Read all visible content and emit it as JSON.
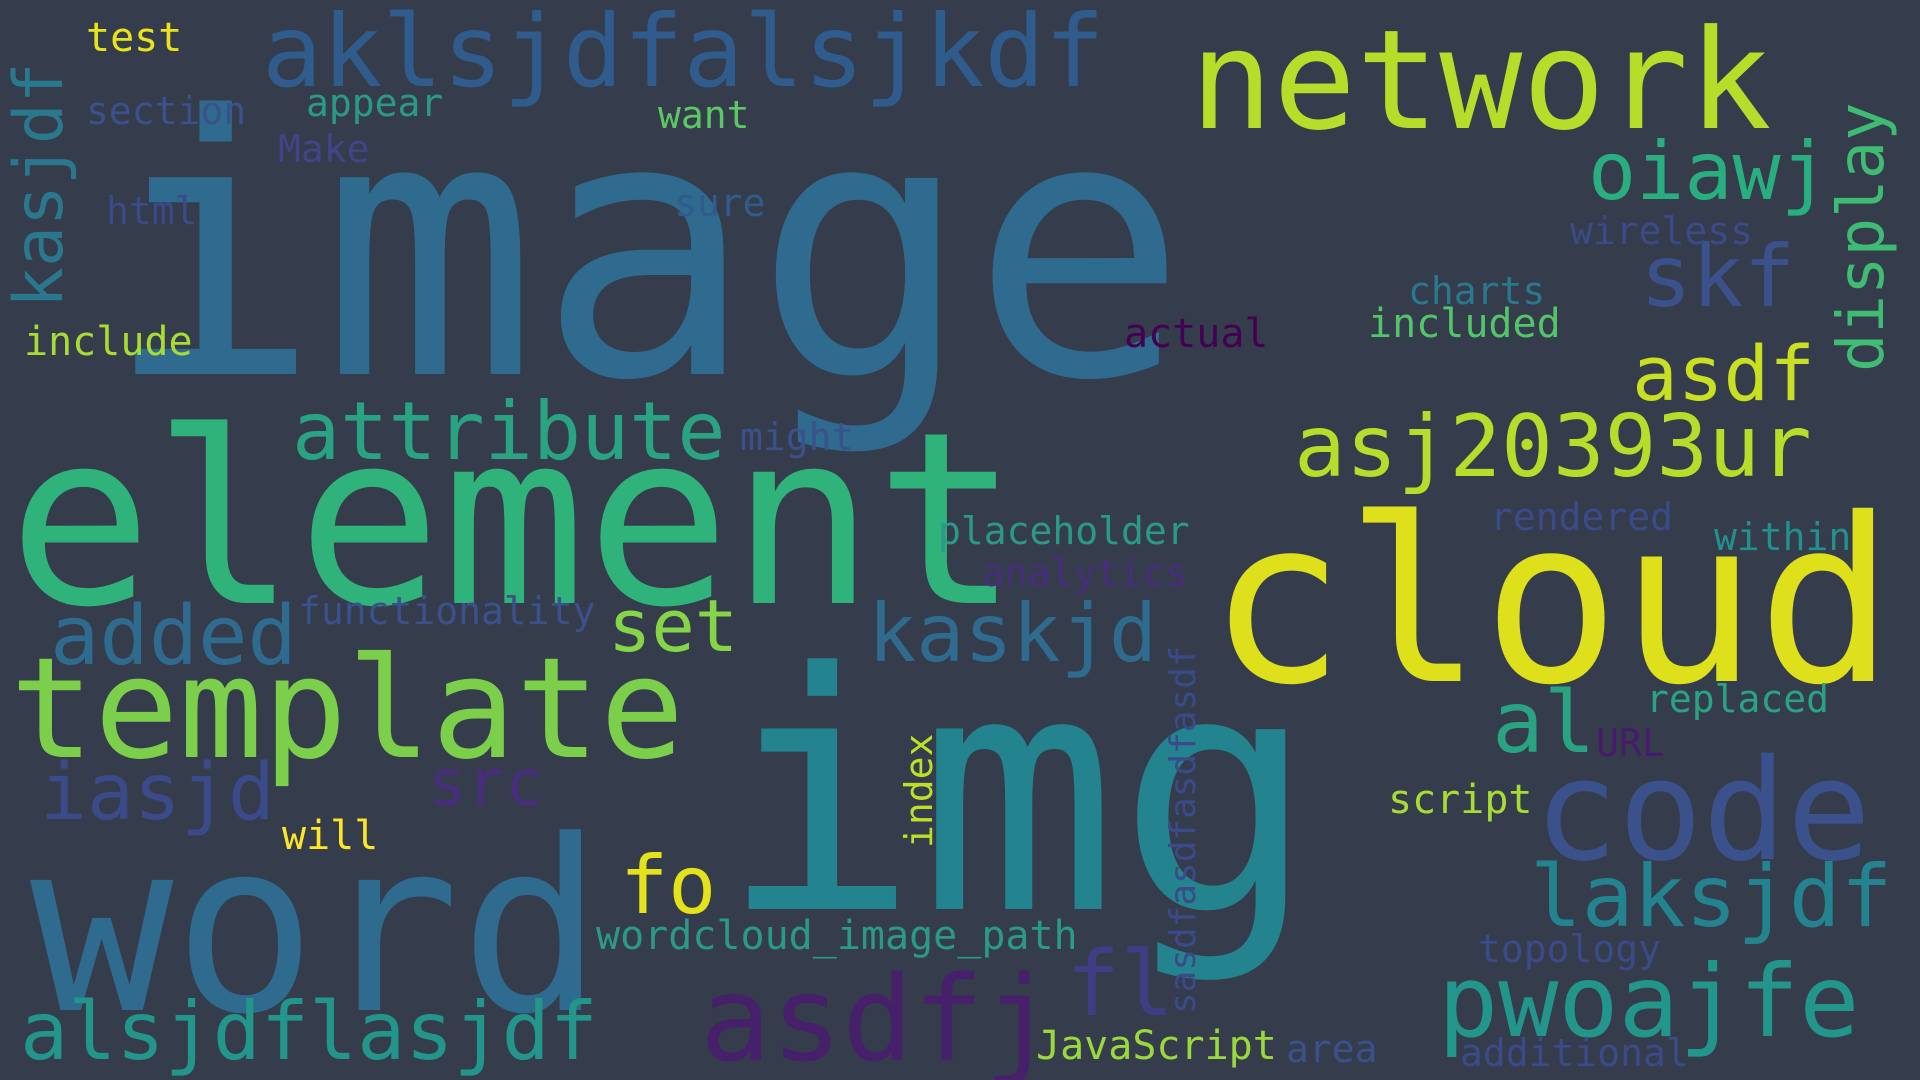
{
  "wordcloud": {
    "words": {
      "image": {
        "text": "image",
        "color": "#2f6b8e"
      },
      "element": {
        "text": "element",
        "color": "#2fb37a"
      },
      "img": {
        "text": "img",
        "color": "#23838e"
      },
      "cloud": {
        "text": "cloud",
        "color": "#dde01a"
      },
      "word": {
        "text": "word",
        "color": "#2f6b8e"
      },
      "template": {
        "text": "template",
        "color": "#7ccf4a"
      },
      "network": {
        "text": "network",
        "color": "#b6dd2a"
      },
      "aklsjdfalsjkdf": {
        "text": "aklsjdfalsjkdf",
        "color": "#2f5c8c"
      },
      "code": {
        "text": "code",
        "color": "#3b518b"
      },
      "pwoajfe": {
        "text": "pwoajfe",
        "color": "#22968b"
      },
      "asdfj": {
        "text": "asdfj",
        "color": "#46206b"
      },
      "alsjdflasjdf": {
        "text": "alsjdflasjdf",
        "color": "#22968b"
      },
      "asj20393ur": {
        "text": "asj20393ur",
        "color": "#b6dd2a"
      },
      "attribute": {
        "text": "attribute",
        "color": "#2aa383"
      },
      "added": {
        "text": "added",
        "color": "#2f6b8e"
      },
      "kaskjd": {
        "text": "kaskjd",
        "color": "#2f6b8e"
      },
      "laksjdf": {
        "text": "laksjdf",
        "color": "#23838e"
      },
      "iasjd": {
        "text": "iasjd",
        "color": "#3b4a88"
      },
      "oiawj": {
        "text": "oiawj",
        "color": "#29af7f"
      },
      "skf": {
        "text": "skf",
        "color": "#3b518b"
      },
      "asdf": {
        "text": "asdf",
        "color": "#c9df22"
      },
      "set": {
        "text": "set",
        "color": "#86d549"
      },
      "al": {
        "text": "al",
        "color": "#2aa383"
      },
      "fo": {
        "text": "fo",
        "color": "#e4e21b"
      },
      "fl": {
        "text": "fl",
        "color": "#413d84"
      },
      "src": {
        "text": "src",
        "color": "#472d7b"
      },
      "display": {
        "text": "display",
        "color": "#3fbc73"
      },
      "kasjdf": {
        "text": "kasjdf",
        "color": "#2a788e"
      },
      "test": {
        "text": "test",
        "color": "#e8e419"
      },
      "section": {
        "text": "section",
        "color": "#3b518b"
      },
      "appear": {
        "text": "appear",
        "color": "#2a9a86"
      },
      "want": {
        "text": "want",
        "color": "#5cc863"
      },
      "Make": {
        "text": "Make",
        "color": "#414487"
      },
      "html": {
        "text": "html",
        "color": "#3b4a88"
      },
      "sure": {
        "text": "sure",
        "color": "#2f5c8c"
      },
      "include": {
        "text": "include",
        "color": "#a8db34"
      },
      "wireless": {
        "text": "wireless",
        "color": "#3b4a88"
      },
      "charts": {
        "text": "charts",
        "color": "#2a788e"
      },
      "included": {
        "text": "included",
        "color": "#52c569"
      },
      "actual": {
        "text": "actual",
        "color": "#440154"
      },
      "might": {
        "text": "might",
        "color": "#3b518b"
      },
      "placeholder": {
        "text": "placeholder",
        "color": "#2a9a86"
      },
      "rendered": {
        "text": "rendered",
        "color": "#3b4a88"
      },
      "within": {
        "text": "within",
        "color": "#22908d"
      },
      "analytics": {
        "text": "analytics",
        "color": "#472d7b"
      },
      "functionality": {
        "text": "functionality",
        "color": "#3b518b"
      },
      "replaced": {
        "text": "replaced",
        "color": "#2aa383"
      },
      "URL": {
        "text": "URL",
        "color": "#481a6c"
      },
      "script": {
        "text": "script",
        "color": "#a8db34"
      },
      "will": {
        "text": "will",
        "color": "#fde725"
      },
      "index": {
        "text": "index",
        "color": "#bddf26"
      },
      "sasdfasdfasdfasdf": {
        "text": "sasdfasdfasdfasdf",
        "color": "#3b4a88"
      },
      "wordcloud_image_path": {
        "text": "wordcloud_image_path",
        "color": "#2a9a86"
      },
      "topology": {
        "text": "topology",
        "color": "#3b4a88"
      },
      "JavaScript": {
        "text": "JavaScript",
        "color": "#9ad93b"
      },
      "area": {
        "text": "area",
        "color": "#3b518b"
      },
      "additional": {
        "text": "additional",
        "color": "#3b4a88"
      }
    }
  }
}
